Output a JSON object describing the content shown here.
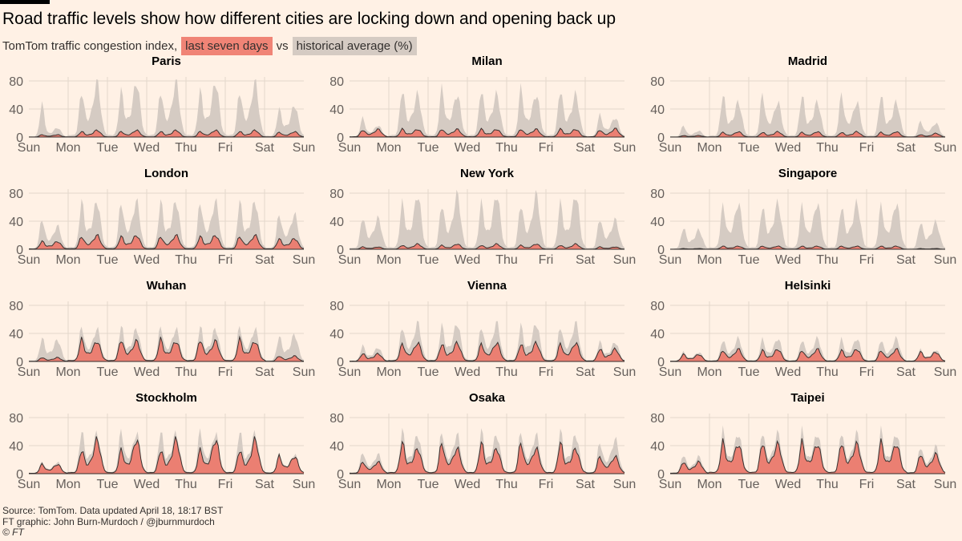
{
  "header": {
    "title": "Road traffic levels show how different cities are locking down and opening back up",
    "subtitle_prefix": "TomTom traffic congestion index,",
    "legend_current": "last seven days",
    "legend_vs": "vs",
    "legend_historical": "historical average (%)"
  },
  "footer": {
    "source": "Source: TomTom. Data updated April 18, 18:17 BST",
    "credit": "FT graphic: John Burn-Murdoch / @jburnmurdoch",
    "copyright": "© FT"
  },
  "colors": {
    "current": "#eb7f72",
    "historical": "#d5cbc3",
    "line": "#3a3331",
    "background": "#fff1e5",
    "grid": "#e3d7cc"
  },
  "chart_data": {
    "type": "area",
    "y_ticks": [
      0,
      40,
      80
    ],
    "ylim": [
      0,
      85
    ],
    "x_tick_labels": [
      "Sun",
      "Mon",
      "Tue",
      "Wed",
      "Thu",
      "Fri",
      "Sat",
      "Sun"
    ],
    "daily_profile_note": "hourly values; each day: night low, morning peak, evening peak",
    "cities": [
      {
        "name": "Paris",
        "historical": {
          "first": [
            45,
            12
          ],
          "weekday": [
            58,
            72
          ],
          "sat": [
            35,
            42
          ]
        },
        "current": {
          "first": [
            3,
            3
          ],
          "weekday": [
            7,
            9
          ],
          "sat": [
            6,
            7
          ]
        }
      },
      {
        "name": "Milan",
        "historical": {
          "first": [
            25,
            15
          ],
          "weekday": [
            62,
            55
          ],
          "sat": [
            28,
            25
          ]
        },
        "current": {
          "first": [
            9,
            10
          ],
          "weekday": [
            10,
            10
          ],
          "sat": [
            9,
            11
          ]
        }
      },
      {
        "name": "Madrid",
        "historical": {
          "first": [
            15,
            8
          ],
          "weekday": [
            55,
            45
          ],
          "sat": [
            20,
            18
          ]
        },
        "current": {
          "first": [
            2,
            2
          ],
          "weekday": [
            6,
            7
          ],
          "sat": [
            3,
            5
          ]
        }
      },
      {
        "name": "London",
        "historical": {
          "first": [
            40,
            30
          ],
          "weekday": [
            60,
            62
          ],
          "sat": [
            45,
            45
          ]
        },
        "current": {
          "first": [
            10,
            10
          ],
          "weekday": [
            16,
            18
          ],
          "sat": [
            13,
            14
          ]
        }
      },
      {
        "name": "New York",
        "historical": {
          "first": [
            42,
            40
          ],
          "weekday": [
            58,
            72
          ],
          "sat": [
            40,
            38
          ]
        },
        "current": {
          "first": [
            3,
            3
          ],
          "weekday": [
            5,
            7
          ],
          "sat": [
            3,
            3
          ]
        }
      },
      {
        "name": "Singapore",
        "historical": {
          "first": [
            28,
            25
          ],
          "weekday": [
            55,
            60
          ],
          "sat": [
            35,
            35
          ]
        },
        "current": {
          "first": [
            1,
            1
          ],
          "weekday": [
            4,
            4
          ],
          "sat": [
            1,
            1
          ]
        }
      },
      {
        "name": "Wuhan",
        "historical": {
          "first": [
            30,
            28
          ],
          "weekday": [
            45,
            42
          ],
          "sat": [
            32,
            35
          ]
        },
        "current": {
          "first": [
            5,
            5
          ],
          "weekday": [
            28,
            26
          ],
          "sat": [
            7,
            7
          ]
        }
      },
      {
        "name": "Vienna",
        "historical": {
          "first": [
            20,
            18
          ],
          "weekday": [
            45,
            50
          ],
          "sat": [
            25,
            25
          ]
        },
        "current": {
          "first": [
            10,
            10
          ],
          "weekday": [
            22,
            24
          ],
          "sat": [
            16,
            16
          ]
        }
      },
      {
        "name": "Helsinki",
        "historical": {
          "first": [
            12,
            12
          ],
          "weekday": [
            28,
            30
          ],
          "sat": [
            15,
            15
          ]
        },
        "current": {
          "first": [
            9,
            9
          ],
          "weekday": [
            14,
            16
          ],
          "sat": [
            12,
            12
          ]
        }
      },
      {
        "name": "Stockholm",
        "historical": {
          "first": [
            15,
            15
          ],
          "weekday": [
            55,
            52
          ],
          "sat": [
            25,
            25
          ]
        },
        "current": {
          "first": [
            12,
            12
          ],
          "weekday": [
            30,
            45
          ],
          "sat": [
            22,
            22
          ]
        }
      },
      {
        "name": "Osaka",
        "historical": {
          "first": [
            28,
            25
          ],
          "weekday": [
            55,
            50
          ],
          "sat": [
            40,
            45
          ]
        },
        "current": {
          "first": [
            15,
            15
          ],
          "weekday": [
            40,
            32
          ],
          "sat": [
            22,
            22
          ]
        }
      },
      {
        "name": "Taipei",
        "historical": {
          "first": [
            25,
            22
          ],
          "weekday": [
            55,
            52
          ],
          "sat": [
            35,
            35
          ]
        },
        "current": {
          "first": [
            15,
            15
          ],
          "weekday": [
            40,
            38
          ],
          "sat": [
            25,
            25
          ]
        }
      }
    ]
  }
}
